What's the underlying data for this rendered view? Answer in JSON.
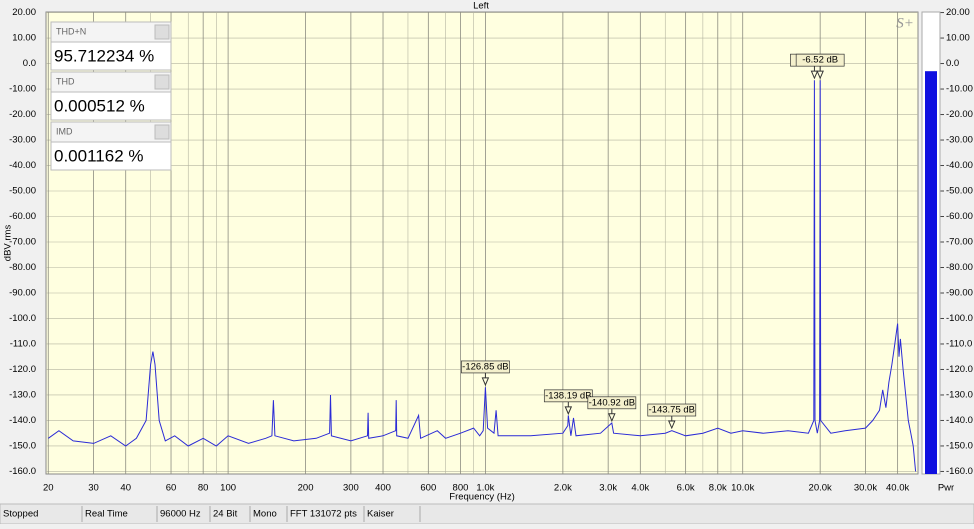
{
  "chart_data": {
    "type": "line",
    "title": "Left",
    "ylabel": "dBV rms",
    "xlabel": "Frequency (Hz)",
    "logo": "S+",
    "xscale": "log",
    "xlim": [
      19.6,
      48000
    ],
    "ylim": [
      -161,
      21
    ],
    "grid": true,
    "xticks": [
      20,
      30,
      40,
      60,
      80,
      100,
      200,
      300,
      400,
      600,
      800,
      {
        "value": 1000,
        "label": "1.0k"
      },
      {
        "value": 2000,
        "label": "2.0k"
      },
      {
        "value": 3000,
        "label": "3.0k"
      },
      {
        "value": 4000,
        "label": "4.0k"
      },
      {
        "value": 6000,
        "label": "6.0k"
      },
      {
        "value": 8000,
        "label": "8.0k"
      },
      {
        "value": 10000,
        "label": "10.0k"
      },
      {
        "value": 20000,
        "label": "20.0k"
      },
      {
        "value": 30000,
        "label": "30.0k"
      },
      {
        "value": 40000,
        "label": "40.0k"
      }
    ],
    "xminor": [
      50,
      70,
      90,
      500,
      700,
      900,
      5000,
      7000,
      9000
    ],
    "yticks": [
      {
        "value": 20,
        "label": "20.00"
      },
      {
        "value": 10,
        "label": "10.00"
      },
      {
        "value": 0,
        "label": "0.0"
      },
      {
        "value": -10,
        "label": "-10.00"
      },
      {
        "value": -20,
        "label": "-20.00"
      },
      {
        "value": -30,
        "label": "-30.00"
      },
      {
        "value": -40,
        "label": "-40.00"
      },
      {
        "value": -50,
        "label": "-50.00"
      },
      {
        "value": -60,
        "label": "-60.00"
      },
      {
        "value": -70,
        "label": "-70.00"
      },
      {
        "value": -80,
        "label": "-80.00"
      },
      {
        "value": -90,
        "label": "-90.00"
      },
      {
        "value": -100,
        "label": "-100.0"
      },
      {
        "value": -110,
        "label": "-110.0"
      },
      {
        "value": -120,
        "label": "-120.0"
      },
      {
        "value": -130,
        "label": "-130.0"
      },
      {
        "value": -140,
        "label": "-140.0"
      },
      {
        "value": -150,
        "label": "-150.0"
      },
      {
        "value": -160,
        "label": "-160.0"
      }
    ],
    "series": [
      {
        "name": "Left",
        "color": "#2b2bd6",
        "x": [
          20,
          22,
          25,
          30,
          35,
          40,
          44,
          48,
          50,
          51,
          52,
          54,
          57,
          62,
          70,
          80,
          90,
          100,
          120,
          140,
          148,
          150,
          152,
          180,
          220,
          248,
          250,
          252,
          300,
          348,
          350,
          352,
          400,
          448,
          450,
          452,
          500,
          550,
          560,
          650,
          700,
          800,
          900,
          950,
          980,
          1000,
          1020,
          1080,
          1100,
          1120,
          1500,
          2000,
          2090,
          2100,
          2150,
          2200,
          2250,
          2800,
          3100,
          3150,
          4000,
          5000,
          5300,
          6000,
          7000,
          8000,
          9000,
          10000,
          12000,
          15000,
          18000,
          18900,
          19000,
          19100,
          19500,
          19900,
          20000,
          20100,
          22000,
          25000,
          30000,
          32000,
          34000,
          35000,
          36000,
          37000,
          38000,
          39000,
          40000,
          40500,
          41000,
          42000,
          43000,
          44000,
          45000,
          46000,
          47000
        ],
        "values": [
          -147,
          -144,
          -148,
          -149,
          -146,
          -150,
          -147,
          -140,
          -118,
          -113,
          -118,
          -140,
          -148,
          -146,
          -150,
          -147,
          -150,
          -146,
          -149,
          -147,
          -146,
          -132,
          -146,
          -148,
          -147,
          -145,
          -130,
          -146,
          -148,
          -146,
          -137,
          -147,
          -146,
          -144,
          -132,
          -146,
          -147,
          -138,
          -147,
          -144,
          -147,
          -145,
          -143,
          -146,
          -144,
          -127,
          -143,
          -145,
          -136,
          -146,
          -146,
          -145,
          -142,
          -138,
          -146,
          -139,
          -146,
          -145,
          -141,
          -145,
          -146,
          -145,
          -144,
          -146,
          -145,
          -143,
          -145,
          -144,
          -145,
          -144,
          -145,
          -140,
          -6.52,
          -140,
          -145,
          -140,
          -6.52,
          -140,
          -145,
          -144,
          -143,
          -140,
          -136,
          -128,
          -135,
          -125,
          -118,
          -110,
          -102,
          -115,
          -108,
          -120,
          -130,
          -140,
          -145,
          -150,
          -160
        ]
      }
    ],
    "markers": [
      {
        "x": 1000,
        "value": -126.85,
        "label": "-126.85 dB"
      },
      {
        "x": 2100,
        "value": -138.19,
        "label": "-138.19 dB"
      },
      {
        "x": 3100,
        "value": -140.92,
        "label": "-140.92 dB"
      },
      {
        "x": 5300,
        "value": -143.75,
        "label": "-143.75 dB"
      },
      {
        "x": 19000,
        "value": -6.52,
        "label": "-6.52 dB"
      },
      {
        "x": 20000,
        "value": -6.52,
        "label": "-6.52 dB"
      }
    ],
    "readouts": [
      {
        "name": "THD+N",
        "label": "95.712234 %"
      },
      {
        "name": "THD",
        "label": "0.000512 %"
      },
      {
        "name": "IMD",
        "label": "0.001162 %"
      }
    ],
    "meter": {
      "name": "Pwr",
      "value": -3,
      "color": "#1010e0"
    },
    "status": [
      "Stopped",
      "Real Time",
      "96000 Hz",
      "24 Bit",
      "Mono",
      "FFT 131072 pts",
      "Kaiser"
    ]
  }
}
